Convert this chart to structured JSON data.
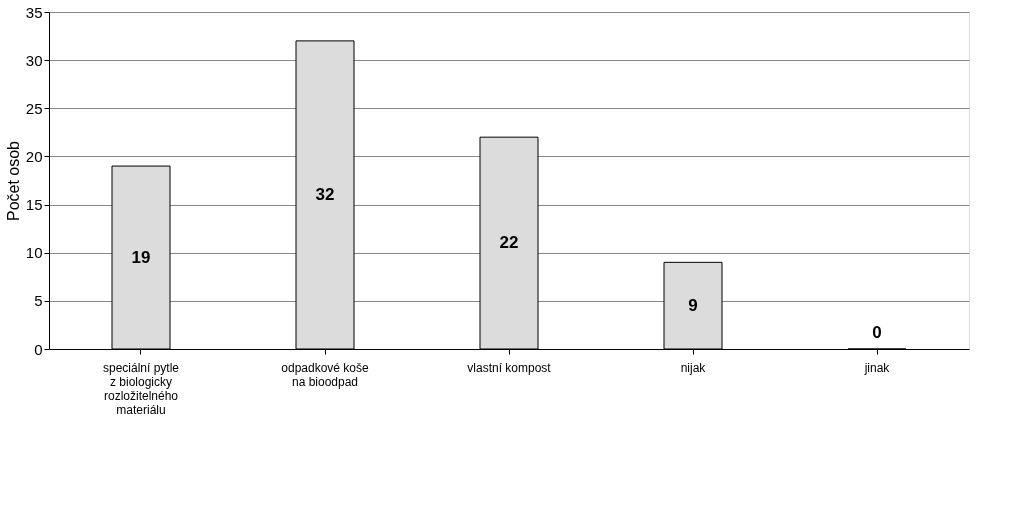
{
  "chart_data": {
    "type": "bar",
    "ylabel": "Počet osob",
    "categories": [
      "speciální pytle z biologicky rozložitelného materiálu",
      "odpadkové koše na bioodpad",
      "vlastní kompost",
      "nijak",
      "jinak"
    ],
    "values": [
      19,
      32,
      22,
      9,
      0
    ],
    "color": "#dcdcdc",
    "ylim": [
      0,
      35
    ],
    "yticks": [
      0,
      5,
      10,
      15,
      20,
      25,
      30,
      35
    ],
    "grid": "y",
    "data_labels": true
  }
}
